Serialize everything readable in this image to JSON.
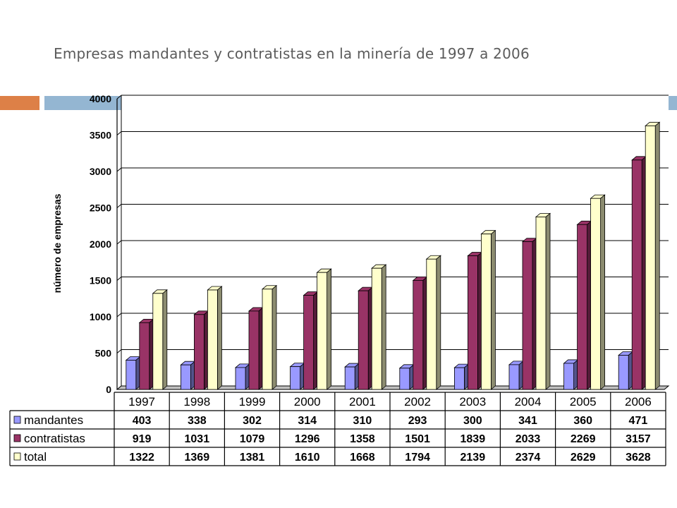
{
  "slide": {
    "title": "Empresas mandantes y contratistas en la minería de 1997 a 2006"
  },
  "colors": {
    "mandantes": "#9999ff",
    "contratistas": "#993366",
    "total": "#ffffcc",
    "accent_orange": "#dd8047",
    "accent_blue": "#94b6d2"
  },
  "chart_data": {
    "type": "bar",
    "ylabel": "número de empresas",
    "ylim": [
      0,
      4000
    ],
    "yticks": [
      0,
      500,
      1000,
      1500,
      2000,
      2500,
      3000,
      3500,
      4000
    ],
    "grid": true,
    "legend": "data table below chart",
    "categories": [
      "1997",
      "1998",
      "1999",
      "2000",
      "2001",
      "2002",
      "2003",
      "2004",
      "2005",
      "2006"
    ],
    "series": [
      {
        "name": "mandantes",
        "values": [
          403,
          338,
          302,
          314,
          310,
          293,
          300,
          341,
          360,
          471
        ]
      },
      {
        "name": "contratistas",
        "values": [
          919,
          1031,
          1079,
          1296,
          1358,
          1501,
          1839,
          2033,
          2269,
          3157
        ]
      },
      {
        "name": "total",
        "values": [
          1322,
          1369,
          1381,
          1610,
          1668,
          1794,
          2139,
          2374,
          2629,
          3628
        ]
      }
    ]
  }
}
